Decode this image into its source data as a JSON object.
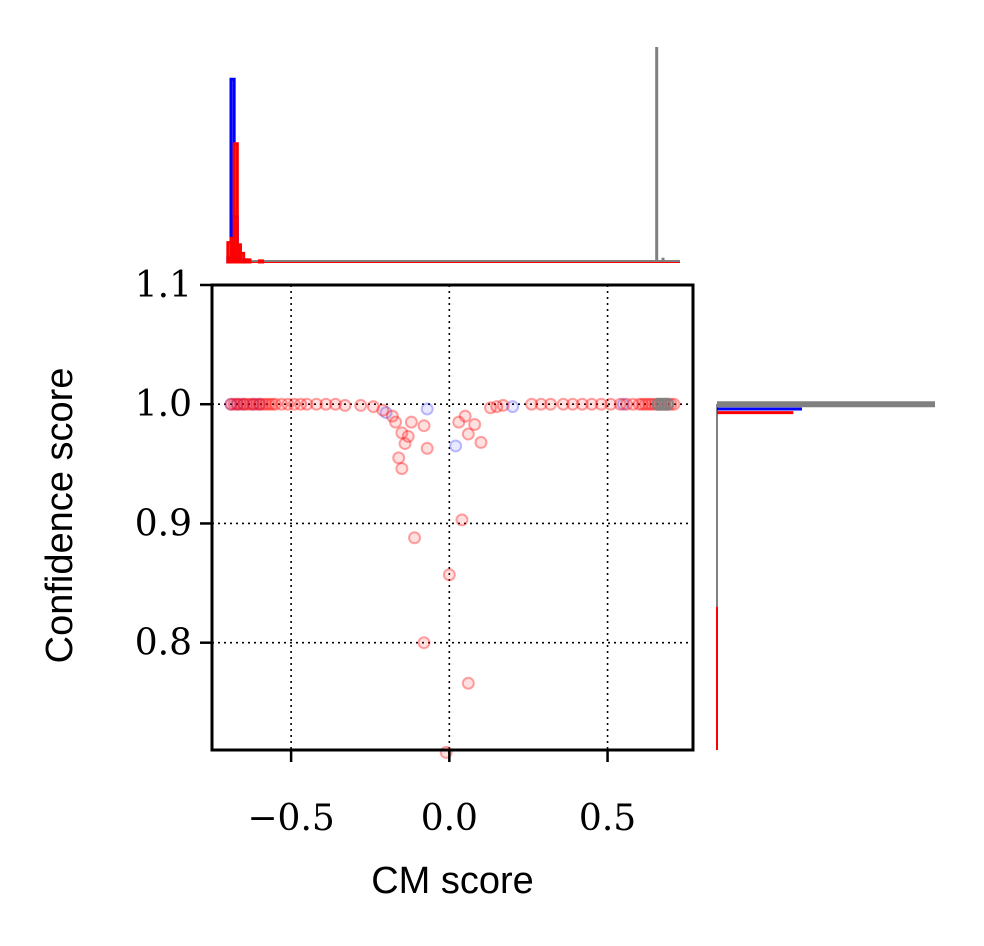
{
  "chart_data": {
    "type": "scatter",
    "title": "",
    "xlabel": "CM score",
    "ylabel": "Confidence score",
    "xlim": [
      -0.75,
      0.77
    ],
    "ylim": [
      0.71,
      1.1
    ],
    "xticks": [
      -0.5,
      0.0,
      0.5
    ],
    "xtick_labels": [
      "−0.5",
      "0.0",
      "0.5"
    ],
    "yticks": [
      0.8,
      0.9,
      1.0,
      1.1
    ],
    "ytick_labels": [
      "0.8",
      "0.9",
      "1.0",
      "1.1"
    ],
    "grid": true,
    "colors": {
      "blue": "#0000ff",
      "red": "#ff0000",
      "gray": "#808080"
    },
    "series": [
      {
        "color": "blue",
        "points": [
          [
            -0.69,
            1.0
          ],
          [
            -0.67,
            1.0
          ],
          [
            -0.65,
            1.0
          ],
          [
            -0.62,
            1.0
          ],
          [
            -0.6,
            1.0
          ],
          [
            -0.2,
            0.993
          ],
          [
            -0.07,
            0.996
          ],
          [
            0.02,
            0.965
          ],
          [
            0.2,
            0.998
          ],
          [
            0.55,
            1.0
          ]
        ]
      },
      {
        "color": "red",
        "points": [
          [
            -0.69,
            1.0
          ],
          [
            -0.68,
            1.0
          ],
          [
            -0.67,
            1.0
          ],
          [
            -0.66,
            1.0
          ],
          [
            -0.65,
            1.0
          ],
          [
            -0.64,
            1.0
          ],
          [
            -0.63,
            1.0
          ],
          [
            -0.62,
            1.0
          ],
          [
            -0.61,
            1.0
          ],
          [
            -0.6,
            1.0
          ],
          [
            -0.59,
            1.0
          ],
          [
            -0.58,
            1.0
          ],
          [
            -0.57,
            1.0
          ],
          [
            -0.56,
            1.0
          ],
          [
            -0.55,
            1.0
          ],
          [
            -0.53,
            1.0
          ],
          [
            -0.51,
            1.0
          ],
          [
            -0.49,
            1.0
          ],
          [
            -0.47,
            1.0
          ],
          [
            -0.45,
            1.0
          ],
          [
            -0.42,
            1.0
          ],
          [
            -0.39,
            1.0
          ],
          [
            -0.36,
            1.0
          ],
          [
            -0.33,
            0.999
          ],
          [
            -0.28,
            0.999
          ],
          [
            -0.24,
            0.998
          ],
          [
            -0.21,
            0.995
          ],
          [
            -0.18,
            0.99
          ],
          [
            -0.17,
            0.985
          ],
          [
            -0.15,
            0.976
          ],
          [
            -0.14,
            0.967
          ],
          [
            -0.16,
            0.955
          ],
          [
            -0.15,
            0.946
          ],
          [
            -0.13,
            0.973
          ],
          [
            -0.12,
            0.985
          ],
          [
            -0.08,
            0.982
          ],
          [
            -0.07,
            0.963
          ],
          [
            -0.11,
            0.888
          ],
          [
            -0.08,
            0.8
          ],
          [
            0.04,
            0.903
          ],
          [
            0.0,
            0.857
          ],
          [
            0.06,
            0.766
          ],
          [
            -0.01,
            0.708
          ],
          [
            0.03,
            0.985
          ],
          [
            0.05,
            0.99
          ],
          [
            0.06,
            0.975
          ],
          [
            0.08,
            0.983
          ],
          [
            0.1,
            0.968
          ],
          [
            0.13,
            0.997
          ],
          [
            0.15,
            0.998
          ],
          [
            0.17,
            0.999
          ],
          [
            0.26,
            1.0
          ],
          [
            0.29,
            1.0
          ],
          [
            0.32,
            1.0
          ],
          [
            0.36,
            1.0
          ],
          [
            0.39,
            1.0
          ],
          [
            0.42,
            1.0
          ],
          [
            0.45,
            1.0
          ],
          [
            0.48,
            1.0
          ],
          [
            0.51,
            1.0
          ],
          [
            0.54,
            1.0
          ],
          [
            0.56,
            1.0
          ],
          [
            0.58,
            1.0
          ],
          [
            0.6,
            1.0
          ],
          [
            0.61,
            1.0
          ],
          [
            0.62,
            1.0
          ],
          [
            0.63,
            1.0
          ],
          [
            0.64,
            1.0
          ],
          [
            0.65,
            1.0
          ],
          [
            0.66,
            1.0
          ],
          [
            0.67,
            1.0
          ],
          [
            0.68,
            1.0
          ],
          [
            0.69,
            1.0
          ],
          [
            0.7,
            1.0
          ],
          [
            0.71,
            1.0
          ]
        ]
      },
      {
        "color": "gray",
        "points": [
          [
            0.66,
            1.0
          ],
          [
            0.67,
            1.0
          ],
          [
            0.68,
            1.0
          ],
          [
            0.69,
            1.0
          ]
        ]
      }
    ],
    "top_histogram": [
      {
        "color": "blue",
        "bins": [
          [
            -0.7,
            0.02
          ],
          [
            -0.69,
            0.85
          ],
          [
            -0.68,
            0.21
          ],
          [
            -0.67,
            0.02
          ],
          [
            -0.65,
            0.01
          ]
        ]
      },
      {
        "color": "red",
        "bins": [
          [
            -0.7,
            0.09
          ],
          [
            -0.69,
            0.11
          ],
          [
            -0.68,
            0.55
          ],
          [
            -0.67,
            0.08
          ],
          [
            -0.66,
            0.04
          ],
          [
            -0.64,
            0.01
          ],
          [
            -0.6,
            0.005
          ]
        ]
      },
      {
        "color": "gray",
        "bins": [
          [
            0.66,
            1.0
          ],
          [
            0.68,
            0.02
          ]
        ]
      }
    ],
    "right_histogram": [
      {
        "color": "gray",
        "level": 1.0,
        "length": 1.0
      },
      {
        "color": "blue",
        "level": 0.996,
        "length": 0.39
      },
      {
        "color": "red",
        "level": 0.993,
        "length": 0.35
      }
    ]
  }
}
